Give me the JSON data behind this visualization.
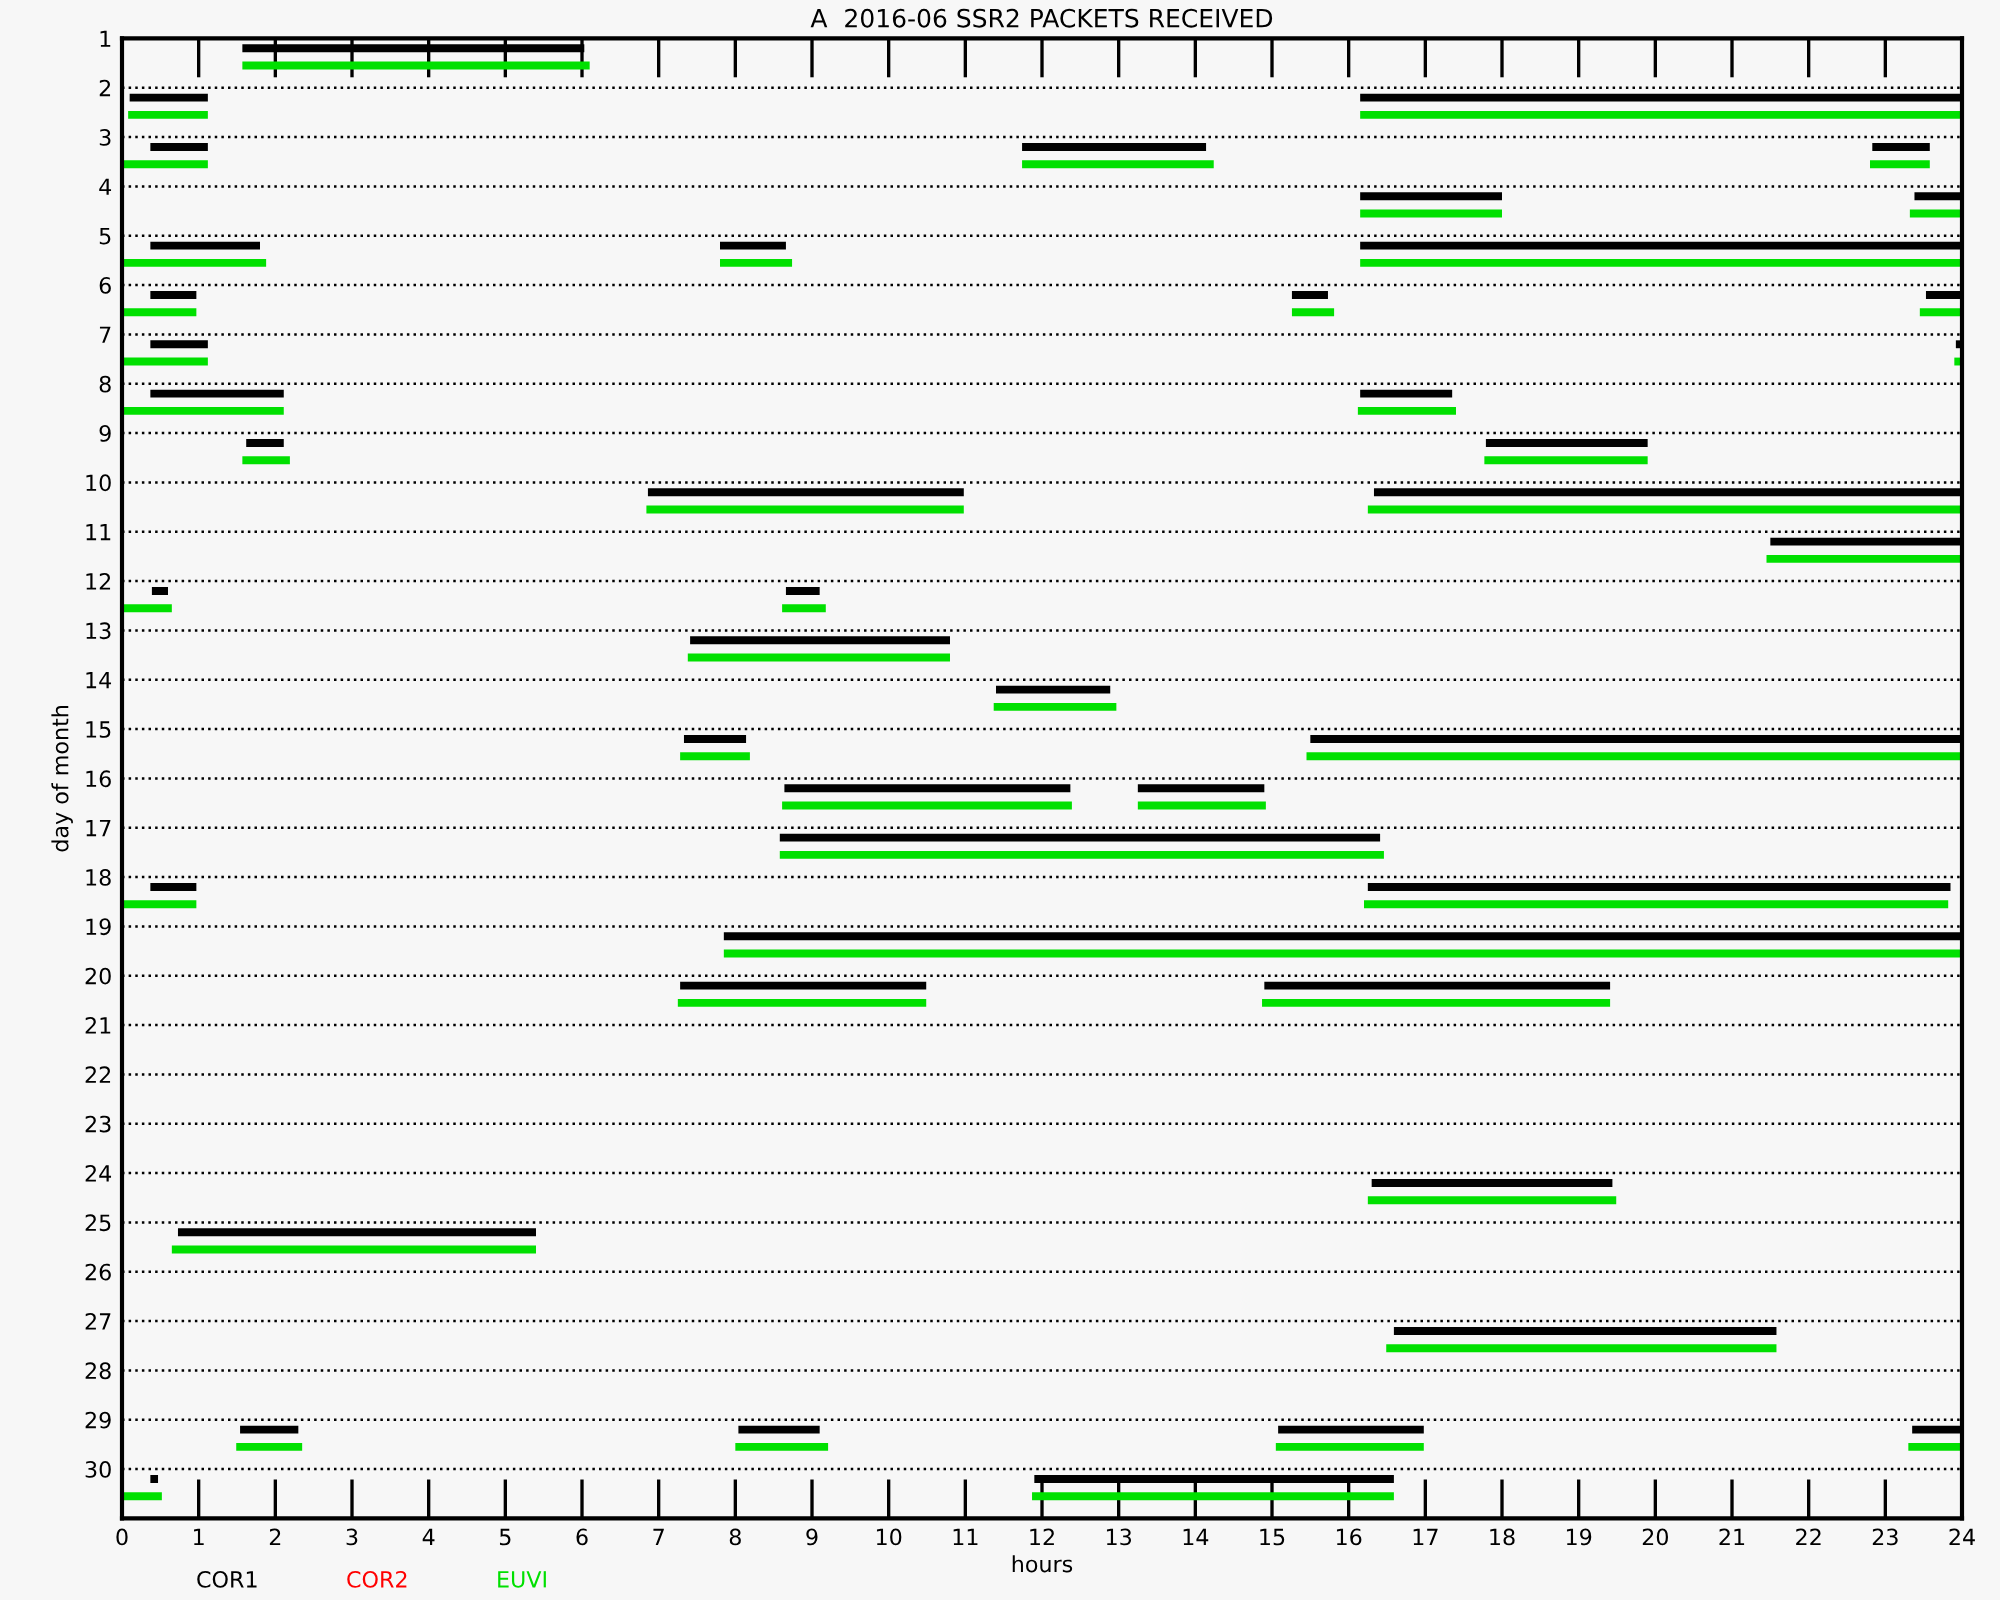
{
  "chart_data": {
    "type": "bar",
    "orientation": "horizontal",
    "title": "A  2016-06 SSR2 PACKETS RECEIVED",
    "xlabel": "hours",
    "ylabel": "day of month",
    "categories": [
      "1",
      "2",
      "3",
      "4",
      "5",
      "6",
      "7",
      "8",
      "9",
      "10",
      "11",
      "12",
      "13",
      "14",
      "15",
      "16",
      "17",
      "18",
      "19",
      "20",
      "21",
      "22",
      "23",
      "24",
      "25",
      "26",
      "27",
      "28",
      "29",
      "30"
    ],
    "xlim": [
      0,
      24
    ],
    "xticks": [
      0,
      1,
      2,
      3,
      4,
      5,
      6,
      7,
      8,
      9,
      10,
      11,
      12,
      13,
      14,
      15,
      16,
      17,
      18,
      19,
      20,
      21,
      22,
      23,
      24
    ],
    "grid": "y",
    "legend": "bottom",
    "line_style": "dotted",
    "series": [
      {
        "name": "COR1",
        "color": "#000000",
        "base": [
          1.57,
          0.1,
          0.37,
          16.15,
          0.37,
          0.37,
          0.37,
          0.37,
          1.62,
          6.86,
          21.5,
          0.39,
          7.41,
          11.4,
          7.33,
          8.64,
          8.58,
          0.37,
          7.85,
          7.28,
          null,
          null,
          null,
          16.3,
          0.73,
          null,
          16.59,
          null,
          1.54,
          0.37
        ],
        "values": [
          4.46,
          1.02,
          0.75,
          1.85,
          1.43,
          0.6,
          0.75,
          1.74,
          0.49,
          4.12,
          2.5,
          0.21,
          3.39,
          1.49,
          0.81,
          3.73,
          7.83,
          0.6,
          16.15,
          3.21,
          null,
          null,
          null,
          3.14,
          4.67,
          null,
          4.99,
          null,
          0.76,
          0.1
        ]
      },
      {
        "color": "#000000",
        "base": [
          null,
          16.15,
          11.74,
          23.38,
          7.8,
          15.26,
          23.92,
          16.15,
          17.79,
          16.33,
          null,
          8.66,
          null,
          null,
          15.5,
          13.25,
          null,
          16.25,
          null,
          14.9,
          null,
          null,
          null,
          null,
          null,
          null,
          null,
          null,
          8.04,
          11.9
        ],
        "values": [
          null,
          7.85,
          2.4,
          0.62,
          0.86,
          0.47,
          0.08,
          1.2,
          2.11,
          7.67,
          null,
          0.44,
          null,
          null,
          8.5,
          1.65,
          null,
          7.6,
          null,
          4.51,
          null,
          null,
          null,
          null,
          null,
          null,
          null,
          null,
          1.06,
          4.69
        ]
      },
      {
        "color": "#000000",
        "base": [
          null,
          null,
          22.83,
          null,
          16.15,
          23.53,
          null,
          null,
          null,
          null,
          null,
          null,
          null,
          null,
          null,
          null,
          null,
          null,
          null,
          null,
          null,
          null,
          null,
          null,
          null,
          null,
          null,
          null,
          15.08,
          null
        ],
        "values": [
          null,
          null,
          0.75,
          null,
          7.85,
          0.47,
          null,
          null,
          null,
          null,
          null,
          null,
          null,
          null,
          null,
          null,
          null,
          null,
          null,
          null,
          null,
          null,
          null,
          null,
          null,
          null,
          null,
          null,
          1.9,
          null
        ]
      },
      {
        "color": "#000000",
        "base": [
          null,
          null,
          null,
          null,
          null,
          null,
          null,
          null,
          null,
          null,
          null,
          null,
          null,
          null,
          null,
          null,
          null,
          null,
          null,
          null,
          null,
          null,
          null,
          null,
          null,
          null,
          null,
          null,
          23.35,
          null
        ],
        "values": [
          null,
          null,
          null,
          null,
          null,
          null,
          null,
          null,
          null,
          null,
          null,
          null,
          null,
          null,
          null,
          null,
          null,
          null,
          null,
          null,
          null,
          null,
          null,
          null,
          null,
          null,
          null,
          null,
          0.65,
          null
        ]
      },
      {
        "name": "COR2",
        "color": "#ff0000",
        "values": [
          null,
          null,
          null,
          null,
          null,
          null,
          null,
          null,
          null,
          null,
          null,
          null,
          null,
          null,
          null,
          null,
          null,
          null,
          null,
          null,
          null,
          null,
          null,
          null,
          null,
          null,
          null,
          null,
          null,
          null
        ]
      },
      {
        "name": "EUVI",
        "color": "#00e000",
        "base": [
          1.57,
          0.08,
          0,
          16.15,
          0,
          0,
          0,
          0,
          1.57,
          6.84,
          21.45,
          0,
          7.38,
          11.37,
          7.28,
          8.61,
          8.58,
          0,
          7.85,
          7.25,
          null,
          null,
          null,
          16.25,
          0.65,
          null,
          16.49,
          null,
          1.49,
          0
        ],
        "values": [
          4.53,
          1.04,
          1.12,
          1.85,
          1.88,
          0.97,
          1.12,
          2.11,
          0.62,
          4.14,
          2.55,
          0.65,
          3.42,
          1.6,
          0.91,
          3.78,
          7.88,
          0.97,
          16.15,
          3.24,
          null,
          null,
          null,
          3.24,
          4.75,
          null,
          5.09,
          null,
          0.86,
          0.52
        ]
      },
      {
        "color": "#00e000",
        "base": [
          null,
          16.15,
          11.74,
          23.32,
          7.8,
          15.26,
          23.9,
          16.12,
          17.77,
          16.25,
          null,
          8.61,
          null,
          null,
          15.45,
          13.25,
          null,
          16.2,
          null,
          14.87,
          null,
          null,
          null,
          null,
          null,
          null,
          null,
          null,
          8.0,
          11.87
        ],
        "values": [
          null,
          7.85,
          2.5,
          0.68,
          0.94,
          0.55,
          0.1,
          1.28,
          2.13,
          7.75,
          null,
          0.57,
          null,
          null,
          8.55,
          1.67,
          null,
          7.62,
          null,
          4.54,
          null,
          null,
          null,
          null,
          null,
          null,
          null,
          null,
          1.21,
          4.72
        ]
      },
      {
        "color": "#00e000",
        "base": [
          null,
          null,
          22.8,
          null,
          16.15,
          23.45,
          null,
          null,
          null,
          null,
          null,
          null,
          null,
          null,
          null,
          null,
          null,
          null,
          null,
          null,
          null,
          null,
          null,
          null,
          null,
          null,
          null,
          null,
          15.05,
          null
        ],
        "values": [
          null,
          null,
          0.78,
          null,
          7.85,
          0.55,
          null,
          null,
          null,
          null,
          null,
          null,
          null,
          null,
          null,
          null,
          null,
          null,
          null,
          null,
          null,
          null,
          null,
          null,
          null,
          null,
          null,
          null,
          1.93,
          null
        ]
      },
      {
        "color": "#00e000",
        "base": [
          null,
          null,
          null,
          null,
          null,
          null,
          null,
          null,
          null,
          null,
          null,
          null,
          null,
          null,
          null,
          null,
          null,
          null,
          null,
          null,
          null,
          null,
          null,
          null,
          null,
          null,
          null,
          null,
          23.3,
          null
        ],
        "values": [
          null,
          null,
          null,
          null,
          null,
          null,
          null,
          null,
          null,
          null,
          null,
          null,
          null,
          null,
          null,
          null,
          null,
          null,
          null,
          null,
          null,
          null,
          null,
          null,
          null,
          null,
          null,
          null,
          0.7,
          null
        ]
      }
    ]
  }
}
